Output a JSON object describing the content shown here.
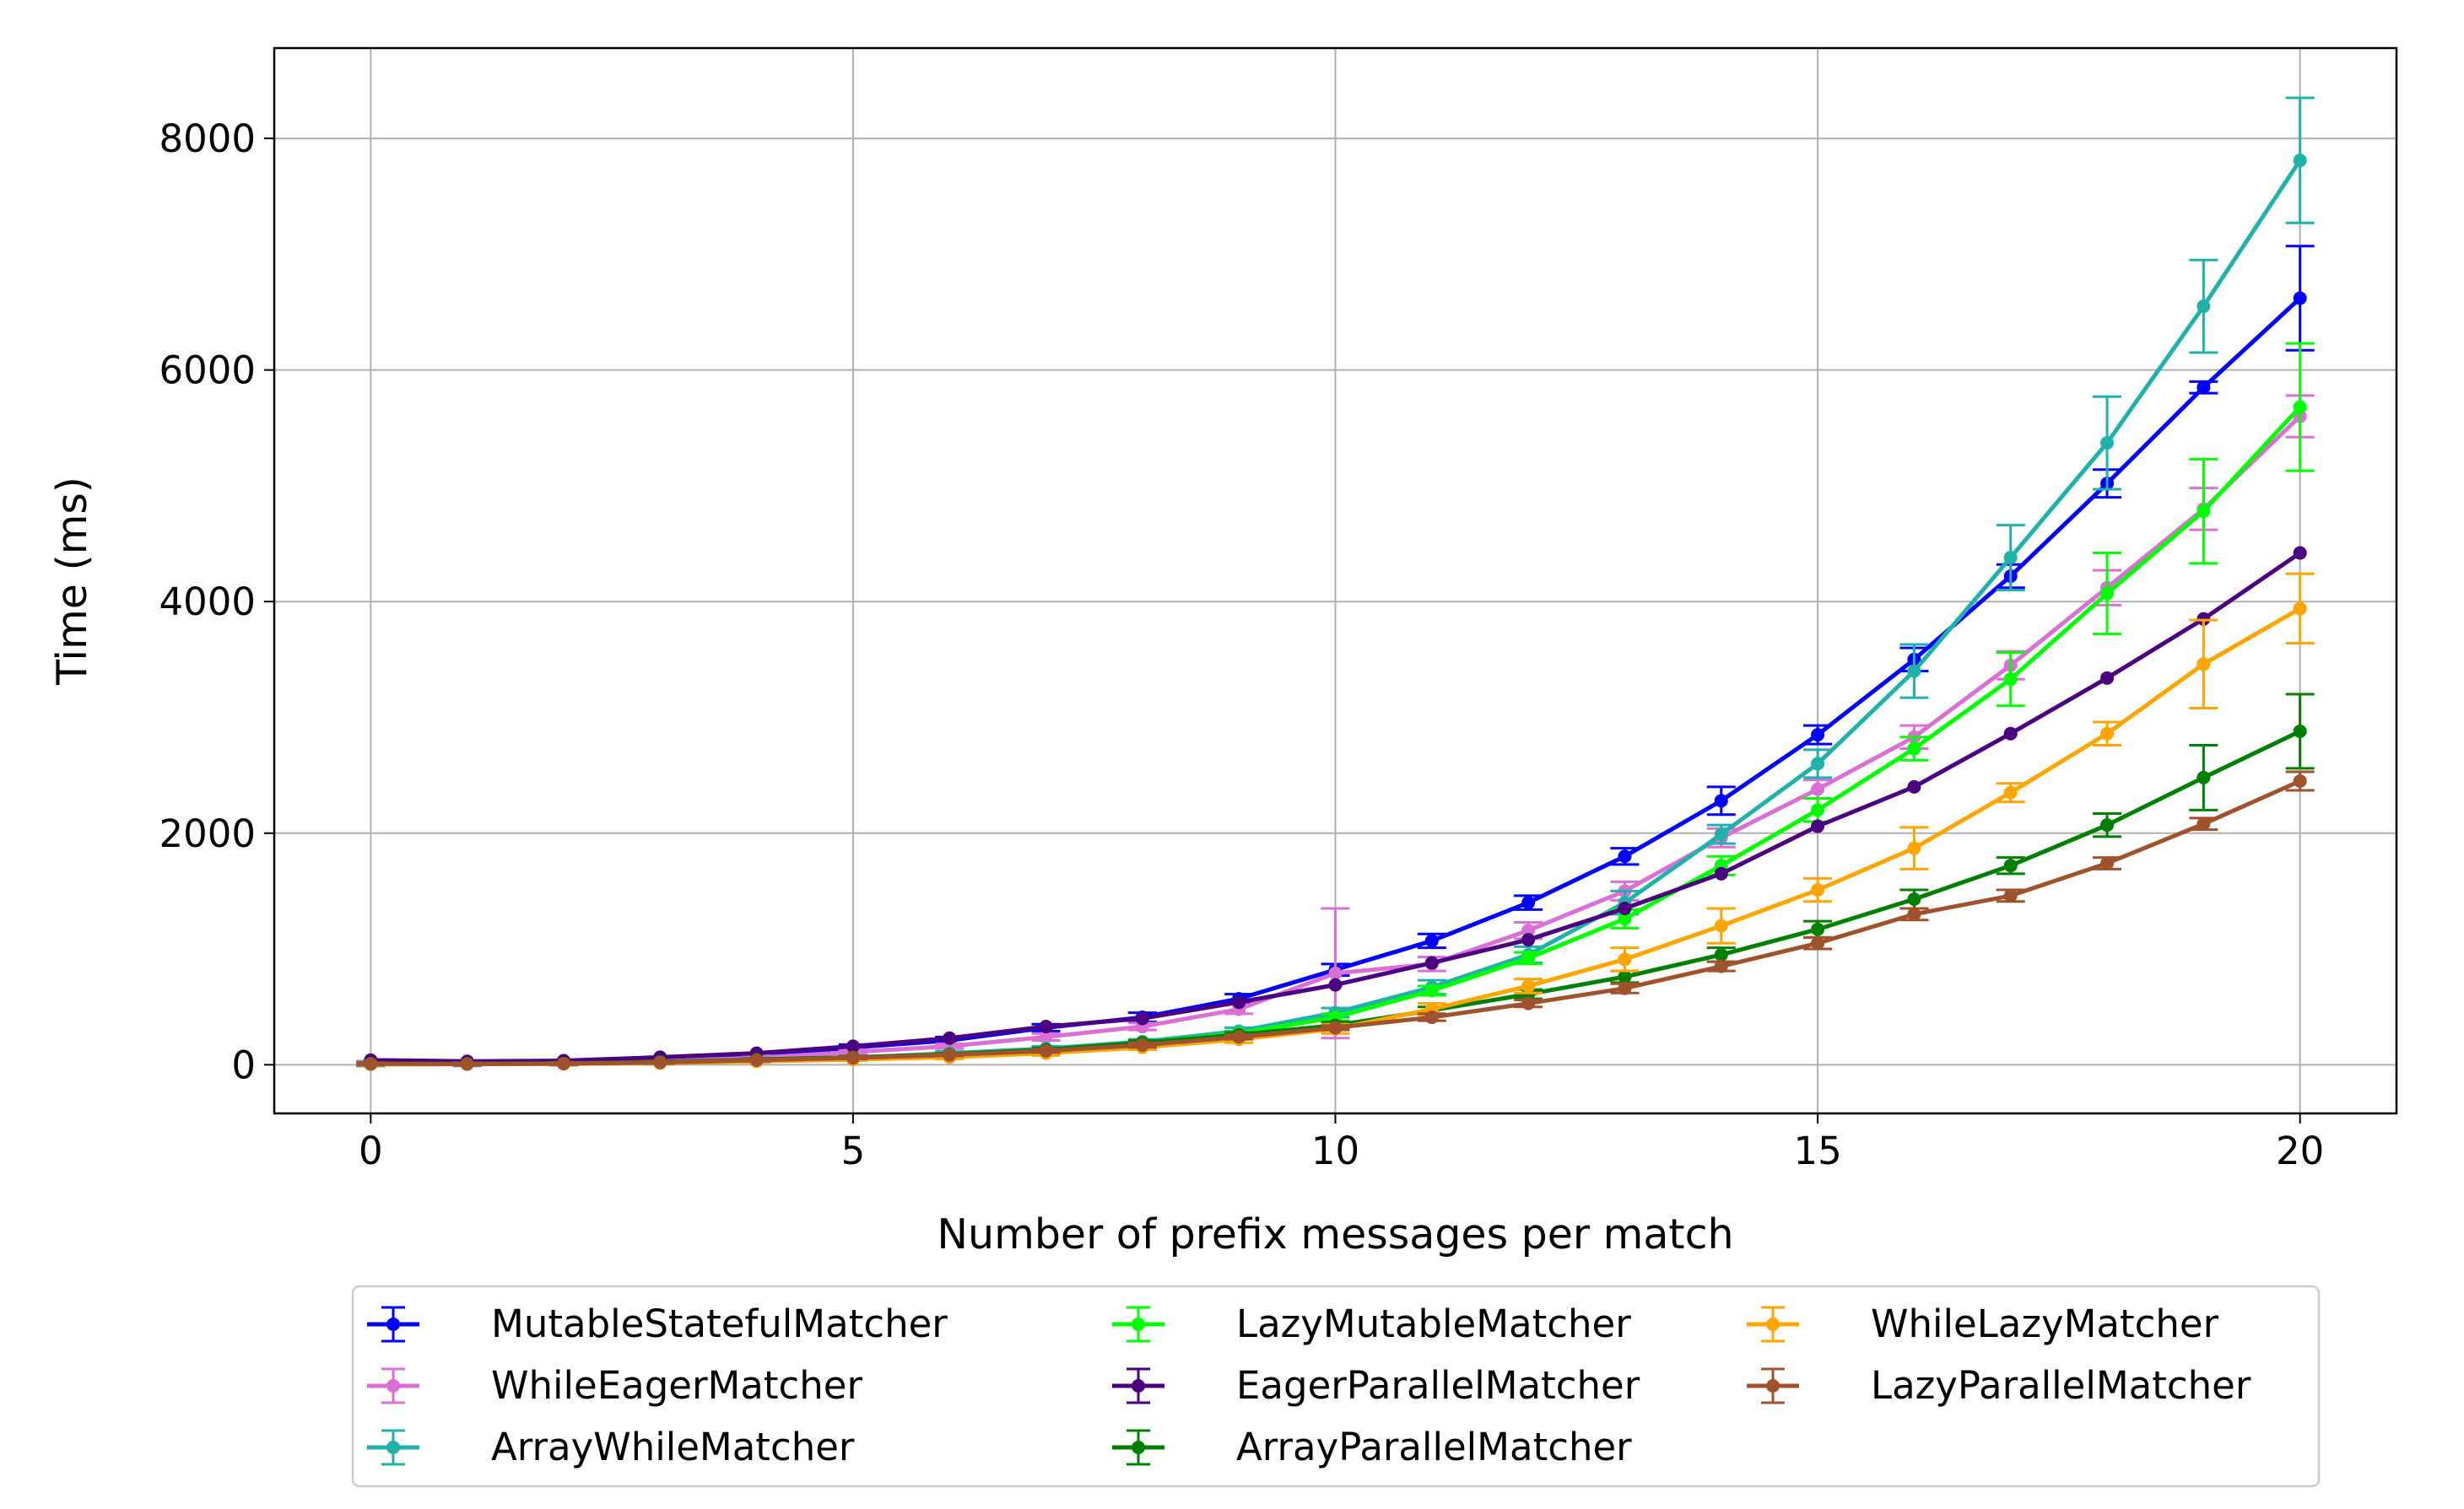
{
  "chart_data": {
    "type": "line",
    "xlabel": "Number of prefix messages per match",
    "ylabel": "Time (ms)",
    "xlim": [
      -1,
      21
    ],
    "ylim": [
      -420,
      8780
    ],
    "xticks": [
      0,
      5,
      10,
      15,
      20
    ],
    "yticks": [
      0,
      2000,
      4000,
      6000,
      8000
    ],
    "grid": true,
    "legend_position": "below plot, 3 columns",
    "x": [
      0,
      1,
      2,
      3,
      4,
      5,
      6,
      7,
      8,
      9,
      10,
      11,
      12,
      13,
      14,
      15,
      16,
      17,
      18,
      19,
      20
    ],
    "series": [
      {
        "name": "MutableStatefulMatcher",
        "color": "#0000ff",
        "values": [
          10,
          12,
          18,
          40,
          80,
          150,
          210,
          320,
          410,
          570,
          820,
          1070,
          1400,
          1800,
          2280,
          2850,
          3500,
          4220,
          5020,
          5850,
          6620
        ],
        "errors": [
          20,
          20,
          20,
          20,
          20,
          25,
          30,
          30,
          40,
          40,
          50,
          60,
          60,
          70,
          120,
          80,
          100,
          100,
          120,
          50,
          450
        ]
      },
      {
        "name": "WhileEagerMatcher",
        "color": "#da70d6",
        "values": [
          8,
          10,
          15,
          30,
          60,
          110,
          160,
          240,
          330,
          480,
          790,
          870,
          1160,
          1500,
          1960,
          2380,
          2830,
          3450,
          4120,
          4800,
          5600
        ],
        "errors": [
          20,
          20,
          20,
          20,
          20,
          20,
          20,
          30,
          30,
          40,
          560,
          60,
          70,
          80,
          80,
          80,
          100,
          120,
          150,
          180,
          180
        ]
      },
      {
        "name": "ArrayWhileMatcher",
        "color": "#20b2aa",
        "values": [
          5,
          6,
          10,
          20,
          40,
          60,
          100,
          140,
          200,
          290,
          450,
          670,
          950,
          1400,
          1990,
          2600,
          3400,
          4380,
          5370,
          6550,
          7810
        ],
        "errors": [
          15,
          15,
          15,
          15,
          15,
          15,
          15,
          20,
          20,
          30,
          40,
          60,
          70,
          100,
          80,
          120,
          230,
          280,
          400,
          400,
          540
        ]
      },
      {
        "name": "LazyMutableMatcher",
        "color": "#00ff00",
        "values": [
          5,
          6,
          10,
          20,
          35,
          55,
          85,
          130,
          190,
          270,
          410,
          640,
          920,
          1260,
          1720,
          2200,
          2730,
          3330,
          4070,
          4780,
          5680
        ],
        "errors": [
          10,
          10,
          10,
          10,
          10,
          10,
          15,
          15,
          20,
          20,
          30,
          40,
          50,
          80,
          80,
          100,
          100,
          230,
          350,
          450,
          550
        ]
      },
      {
        "name": "EagerParallelMatcher",
        "color": "#4b0082",
        "values": [
          40,
          30,
          35,
          65,
          100,
          160,
          230,
          330,
          400,
          540,
          690,
          880,
          1080,
          1350,
          1650,
          2060,
          2400,
          2860,
          3340,
          3850,
          4420
        ]
      },
      {
        "name": "ArrayParallelMatcher",
        "color": "#008000",
        "values": [
          10,
          8,
          12,
          25,
          45,
          65,
          90,
          130,
          190,
          260,
          340,
          470,
          610,
          760,
          950,
          1170,
          1430,
          1720,
          2070,
          2480,
          2880
        ],
        "errors": [
          10,
          10,
          10,
          10,
          10,
          10,
          10,
          15,
          20,
          20,
          30,
          30,
          40,
          50,
          60,
          70,
          80,
          70,
          100,
          280,
          320
        ]
      },
      {
        "name": "WhileLazyMatcher",
        "color": "#ffa500",
        "values": [
          5,
          6,
          8,
          15,
          30,
          45,
          65,
          100,
          150,
          220,
          310,
          480,
          680,
          910,
          1200,
          1510,
          1870,
          2350,
          2860,
          3460,
          3940
        ],
        "errors": [
          10,
          10,
          10,
          10,
          10,
          10,
          15,
          20,
          20,
          30,
          40,
          50,
          60,
          100,
          150,
          100,
          180,
          80,
          100,
          380,
          300
        ]
      },
      {
        "name": "LazyParallelMatcher",
        "color": "#a0522d",
        "values": [
          8,
          6,
          10,
          20,
          40,
          60,
          85,
          120,
          170,
          240,
          320,
          410,
          530,
          660,
          850,
          1050,
          1300,
          1460,
          1740,
          2080,
          2450
        ],
        "errors": [
          10,
          10,
          10,
          10,
          10,
          10,
          10,
          15,
          20,
          20,
          20,
          30,
          30,
          40,
          40,
          50,
          50,
          50,
          50,
          50,
          80
        ]
      }
    ]
  }
}
